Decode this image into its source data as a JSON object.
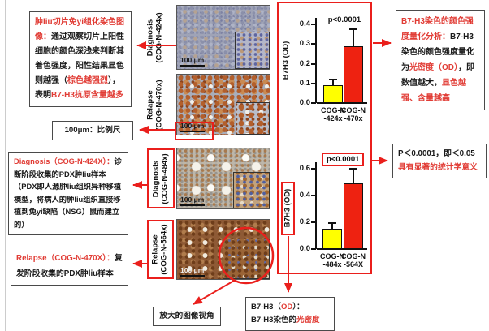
{
  "colors": {
    "red_shape": "#ea1f1c",
    "red_text": "#e13c35",
    "bar_yellow": "#ffff00",
    "bar_red": "#ee2211",
    "note_border": "#4a4a4a"
  },
  "left_column": {
    "ihc_box": {
      "segments": [
        {
          "t": "肿liu切片免yi组化染色图像：",
          "c": "r"
        },
        {
          "t": "通过观察切片上阳性细胞的颜色深浅来判断其着色强度，阳性结果显色则越强（",
          "c": "k"
        },
        {
          "t": "棕色越强烈",
          "c": "r"
        },
        {
          "t": "），表明",
          "c": "k"
        },
        {
          "t": "B7-H3抗原含量越多",
          "c": "r"
        }
      ]
    },
    "scalebar_box": {
      "text": "100μm：比例尺"
    },
    "diagnosis_box": {
      "segments": [
        {
          "t": "Diagnosis（COG-N-424X）：",
          "c": "r"
        },
        {
          "t": "诊断阶段收集的PDX肿liu样本（PDX即人源肿liu组织异种移植模型，将病人的肿liu组织直接移植到免yi缺陷（NSG）鼠而建立的）",
          "c": "k"
        }
      ]
    },
    "relapse_box": {
      "segments": [
        {
          "t": "Relapse（COG-N-470X）：",
          "c": "r"
        },
        {
          "t": "复发阶段收集的PDX肿liu样本",
          "c": "k"
        }
      ]
    }
  },
  "images": [
    {
      "label_line1": "Diagnosis",
      "label_line2": "(COG-N-424x)",
      "scalebar": "100 μm"
    },
    {
      "label_line1": "Relapse",
      "label_line2": "(COG-N-470x)",
      "scalebar": "100 μm"
    },
    {
      "label_line1": "Diagnosis",
      "label_line2": "(COG-N-484x)",
      "scalebar": "100 μm"
    },
    {
      "label_line1": "Relapse",
      "label_line2": "(COG-N-564x)",
      "scalebar": "100 μm"
    }
  ],
  "bottom": {
    "magnified_label": "放大的图像视角",
    "od_box": {
      "line1": [
        {
          "t": "B7-H3（",
          "c": "k"
        },
        {
          "t": "OD",
          "c": "r"
        },
        {
          "t": "）：",
          "c": "k"
        }
      ],
      "line2": [
        {
          "t": "B7-H3染色的",
          "c": "k"
        },
        {
          "t": "光密度",
          "c": "r"
        }
      ]
    }
  },
  "right_column": {
    "quant_box": {
      "segments": [
        {
          "t": "B7-H3染色的颜色强度量化分析：",
          "c": "r"
        },
        {
          "t": "B7-H3染色的颜色强度量化为",
          "c": "k"
        },
        {
          "t": "光密度（OD）",
          "c": "r"
        },
        {
          "t": "，即数值越大，",
          "c": "k"
        },
        {
          "t": "显色越强、含量越高",
          "c": "r"
        }
      ]
    },
    "pvalue_box": {
      "line1": "P＜0.0001，即＜0.05",
      "line2": "具有显著的统计学意义"
    }
  },
  "chart_data": [
    {
      "type": "bar",
      "title": "",
      "ylabel": "B7H3 (OD)",
      "annotation": "p<0.0001",
      "categories": [
        [
          "COG-N",
          "-424x"
        ],
        [
          "COG-N",
          "-470x"
        ]
      ],
      "values": [
        0.09,
        0.29
      ],
      "errors_upper": [
        0.03,
        0.085
      ],
      "bar_colors": [
        "#ffff00",
        "#ee2211"
      ],
      "ylim": [
        0,
        0.4
      ],
      "yticks": [
        0.0,
        0.1,
        0.2,
        0.3,
        0.4
      ],
      "grid": false,
      "legend": null
    },
    {
      "type": "bar",
      "title": "",
      "ylabel": "B7H3 (OD)",
      "annotation": "p<0.0001",
      "categories": [
        [
          "COG-N",
          "-484x"
        ],
        [
          "COG-N",
          "-564X"
        ]
      ],
      "values": [
        0.15,
        0.49
      ],
      "errors_upper": [
        0.045,
        0.11
      ],
      "bar_colors": [
        "#ffff00",
        "#ee2211"
      ],
      "ylim": [
        0,
        0.6
      ],
      "yticks": [
        0.0,
        0.2,
        0.4,
        0.6
      ],
      "grid": false,
      "legend": null
    }
  ]
}
